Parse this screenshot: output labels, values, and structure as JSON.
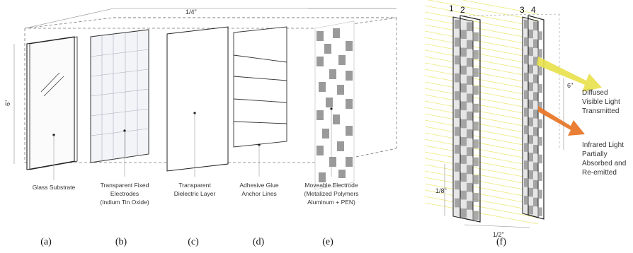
{
  "left_diagram": {
    "width_dimension": "1/4\"",
    "height_dimension": "6\"",
    "layers": [
      {
        "caption_id": "(a)",
        "lines": [
          "Glass Substrate"
        ]
      },
      {
        "caption_id": "(b)",
        "lines": [
          "Transparent Fixed",
          "Electrodes",
          "(Indium Tin Oxide)"
        ]
      },
      {
        "caption_id": "(c)",
        "lines": [
          "Transparent",
          "Dielectric Layer"
        ]
      },
      {
        "caption_id": "(d)",
        "lines": [
          "Adhesive Glue",
          "Anchor Lines"
        ]
      },
      {
        "caption_id": "(e)",
        "lines": [
          "Moveable Electrode",
          "(Metalized Polymers",
          "Aluminum + PEN)"
        ]
      }
    ]
  },
  "right_diagram": {
    "caption_id": "(f)",
    "pane_numbers": [
      "1",
      "2",
      "3",
      "4"
    ],
    "height_dimension": "6\"",
    "gap_dimension": "1/8\"",
    "depth_dimension": "1/2\"",
    "visible_light_note": [
      "Diffused",
      "Visible Light",
      "Transmitted"
    ],
    "infrared_note": [
      "Infrared Light",
      "Partially",
      "Absorbed and",
      "Re-emitted"
    ],
    "colors": {
      "visible_light": "#e8e04a",
      "infrared": "#e8782a"
    }
  }
}
